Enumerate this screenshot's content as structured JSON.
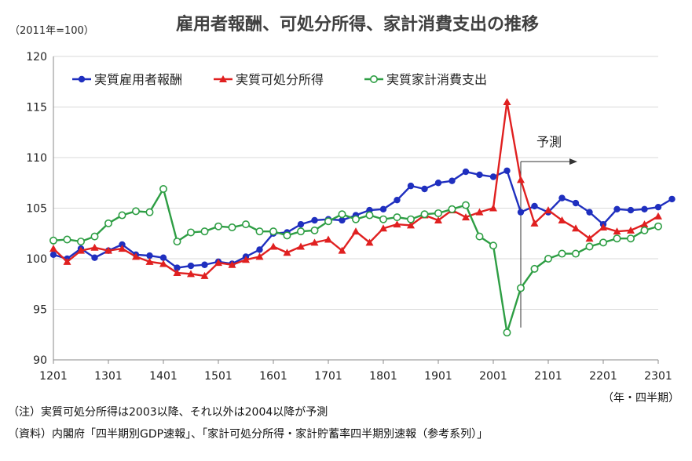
{
  "chart_data": {
    "type": "line",
    "title": "雇用者報酬、可処分所得、家計消費支出の推移",
    "unit_label": "（2011年=100）",
    "x_unit_label": "（年・四半期）",
    "ylim": [
      90,
      120
    ],
    "yticks": [
      90,
      95,
      100,
      105,
      110,
      115,
      120
    ],
    "xlim": [
      2012.0,
      2023.0
    ],
    "xticks": [
      "1201",
      "1301",
      "1401",
      "1501",
      "1601",
      "1701",
      "1801",
      "1901",
      "2001",
      "2101",
      "2201",
      "2301"
    ],
    "forecast_label": "予測",
    "forecast_start": 2020.5,
    "grid": true,
    "legend_position": "top-left",
    "series": [
      {
        "name": "実質雇用者報酬",
        "color": "#1f2fbf",
        "marker": "circle",
        "values": [
          100.4,
          100.0,
          101.0,
          100.1,
          100.8,
          101.4,
          100.4,
          100.3,
          100.1,
          99.1,
          99.3,
          99.4,
          99.7,
          99.5,
          100.2,
          100.9,
          102.5,
          102.6,
          103.4,
          103.8,
          103.9,
          103.8,
          104.3,
          104.8,
          104.9,
          105.8,
          107.2,
          106.9,
          107.5,
          107.7,
          108.6,
          108.3,
          108.1,
          108.7,
          104.6,
          105.2,
          104.6,
          106.0,
          105.5,
          104.6,
          103.4,
          104.9,
          104.8,
          104.9,
          105.1,
          105.9
        ]
      },
      {
        "name": "実質可処分所得",
        "color": "#e02020",
        "marker": "triangle",
        "values": [
          101.0,
          99.7,
          100.8,
          101.1,
          100.8,
          101.0,
          100.2,
          99.7,
          99.5,
          98.6,
          98.5,
          98.3,
          99.6,
          99.4,
          99.9,
          100.2,
          101.2,
          100.6,
          101.2,
          101.6,
          101.9,
          100.8,
          102.7,
          101.6,
          103.0,
          103.4,
          103.3,
          104.3,
          103.8,
          104.8,
          104.1,
          104.6,
          105.0,
          115.5,
          107.8,
          103.5,
          104.8,
          103.8,
          103.0,
          102.0,
          103.1,
          102.7,
          102.8,
          103.4,
          104.2
        ]
      },
      {
        "name": "実質家計消費支出",
        "color": "#2e9e44",
        "marker": "open-circle",
        "values": [
          101.8,
          101.9,
          101.7,
          102.2,
          103.5,
          104.3,
          104.7,
          104.6,
          106.9,
          101.7,
          102.6,
          102.7,
          103.2,
          103.1,
          103.4,
          102.7,
          102.7,
          102.3,
          102.7,
          102.8,
          103.7,
          104.4,
          103.9,
          104.3,
          103.9,
          104.1,
          103.9,
          104.4,
          104.5,
          104.9,
          105.3,
          102.2,
          101.3,
          92.7,
          97.1,
          99.0,
          100.0,
          100.5,
          100.5,
          101.2,
          101.6,
          102.0,
          102.0,
          102.8,
          103.2
        ]
      }
    ]
  },
  "notes": [
    "（注）実質可処分所得は2003以降、それ以外は2004以降が予測",
    "（資料）内閣府「四半期別GDP速報」、「家計可処分所得・家計貯蓄率四半期別速報（参考系列）」"
  ]
}
